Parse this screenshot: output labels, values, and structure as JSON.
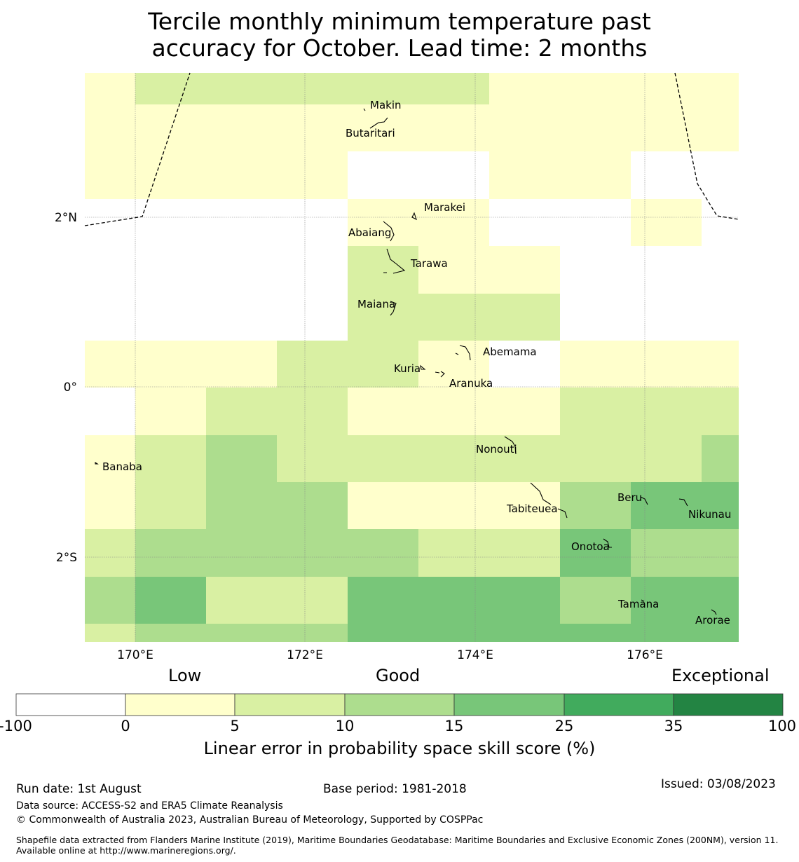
{
  "title_line1": "Tercile monthly minimum temperature past",
  "title_line2": "accuracy for October. Lead time: 2 months",
  "map": {
    "lon_labels": [
      "170°E",
      "172°E",
      "174°E",
      "176°E"
    ],
    "lat_labels": [
      "2°N",
      "0°",
      "2°S"
    ],
    "islands": [
      {
        "name": "Makin"
      },
      {
        "name": "Butaritari"
      },
      {
        "name": "Marakei"
      },
      {
        "name": "Abaiang"
      },
      {
        "name": "Tarawa"
      },
      {
        "name": "Maiana"
      },
      {
        "name": "Abemama"
      },
      {
        "name": "Kuria"
      },
      {
        "name": "Aranuka"
      },
      {
        "name": "Nonouti"
      },
      {
        "name": "Banaba"
      },
      {
        "name": "Beru"
      },
      {
        "name": "Tabiteuea"
      },
      {
        "name": "Nikunau"
      },
      {
        "name": "Onotoa"
      },
      {
        "name": "Tamana"
      },
      {
        "name": "Arorae"
      }
    ],
    "skill_grid": [
      [
        0,
        5,
        5,
        5,
        5,
        5,
        0,
        0,
        0,
        0,
        0
      ],
      [
        0,
        0,
        0,
        0,
        0,
        0,
        0,
        0,
        0,
        0,
        0
      ],
      [
        0,
        0,
        0,
        0,
        -1,
        -1,
        0,
        0,
        -1,
        -1,
        -1
      ],
      [
        -1,
        -1,
        -1,
        -1,
        0,
        0,
        -1,
        -1,
        0,
        -1,
        -1
      ],
      [
        -1,
        -1,
        -1,
        -1,
        5,
        0,
        0,
        -1,
        -1,
        -1,
        -1
      ],
      [
        -1,
        -1,
        -1,
        -1,
        5,
        5,
        5,
        -1,
        -1,
        -1,
        0
      ],
      [
        0,
        0,
        0,
        5,
        5,
        0,
        -1,
        0,
        0,
        0,
        5
      ],
      [
        -1,
        0,
        5,
        5,
        0,
        0,
        0,
        5,
        5,
        5,
        10
      ],
      [
        0,
        5,
        10,
        5,
        5,
        5,
        5,
        5,
        5,
        10,
        10
      ],
      [
        0,
        5,
        10,
        10,
        0,
        0,
        0,
        10,
        15,
        15,
        15
      ],
      [
        5,
        10,
        10,
        10,
        10,
        5,
        5,
        15,
        10,
        10,
        15
      ],
      [
        10,
        15,
        5,
        5,
        15,
        15,
        15,
        10,
        15,
        15,
        15
      ],
      [
        15,
        15,
        5,
        5,
        15,
        15,
        15,
        10,
        10,
        15,
        15
      ],
      [
        5,
        10,
        10,
        10,
        15,
        15,
        15,
        15,
        15,
        15,
        15
      ]
    ]
  },
  "legend": {
    "categories": [
      "Low",
      "Good",
      "Exceptional"
    ],
    "ticks": [
      "-100",
      "0",
      "5",
      "10",
      "15",
      "25",
      "35",
      "100"
    ],
    "colors": [
      "#ffffff",
      "#ffffcc",
      "#d9f0a3",
      "#addd8e",
      "#78c679",
      "#41ab5d",
      "#238443"
    ],
    "label": "Linear error in probability space skill score (%)"
  },
  "footer": {
    "run_date": "Run date: 1st August",
    "base_period": "Base period: 1981-2018",
    "issued": "Issued: 03/08/2023",
    "data_source": "Data source: ACCESS-S2 and ERA5 Climate Reanalysis",
    "copyright": "© Commonwealth of Australia 2023, Australian Bureau of Meteorology, Supported by COSPPac",
    "shapefile": "Shapefile data extracted from Flanders Marine Institute (2019), Maritime Boundaries Geodatabase: Maritime Boundaries and Exclusive Economic Zones (200NM), version 11. Available online at http://www.marineregions.org/."
  }
}
